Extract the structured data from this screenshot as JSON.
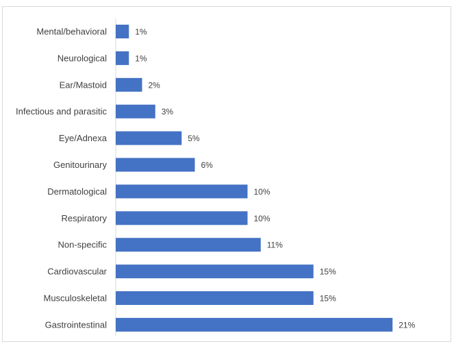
{
  "chart_data": {
    "type": "bar",
    "orientation": "horizontal",
    "title": "",
    "xlabel": "",
    "ylabel": "",
    "categories": [
      "Mental/behavioral",
      "Neurological",
      "Ear/Mastoid",
      "Infectious and parasitic",
      "Eye/Adnexa",
      "Genitourinary",
      "Dermatological",
      "Respiratory",
      "Non-specific",
      "Cardiovascular",
      "Musculoskeletal",
      "Gastrointestinal"
    ],
    "values": [
      1,
      1,
      2,
      3,
      5,
      6,
      10,
      10,
      11,
      15,
      15,
      21
    ],
    "data_labels": [
      "1%",
      "1%",
      "2%",
      "3%",
      "5%",
      "6%",
      "10%",
      "10%",
      "11%",
      "15%",
      "15%",
      "21%"
    ],
    "value_unit": "%",
    "xlim": [
      0,
      23
    ],
    "bar_color": "#4472c4",
    "grid": false,
    "legend": "none"
  }
}
